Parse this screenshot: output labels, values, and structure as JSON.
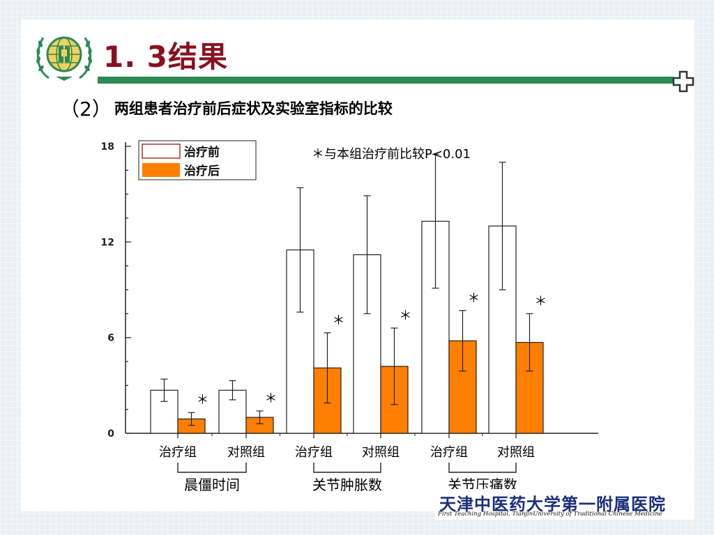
{
  "slide": {
    "title": "1. 3结果",
    "subtitle_num": "（2）",
    "subtitle_text": "两组患者治疗前后症状及实验室指标的比较",
    "footer": {
      "hospital_name": "天津中医药大学第一附属医院",
      "hospital_name_en": "First Teaching Hospital, TianjinUniversity of Traditional Chinese Medicine"
    },
    "colors": {
      "title": "#8a1020",
      "rule": "#2c8a52",
      "after_bar": "#ff7f00",
      "before_bar": "#ffffff"
    },
    "icons": [
      "hospital-logo-icon",
      "corner-cross-icon"
    ]
  },
  "chart_data": {
    "type": "bar",
    "note": "＊与本组治疗前比较P<0.01",
    "ylim": [
      0,
      18
    ],
    "yticks": [
      "0",
      "6",
      "12",
      "18"
    ],
    "categories": [
      "治疗组",
      "对照组",
      "治疗组",
      "对照组",
      "治疗组",
      "对照组"
    ],
    "groups": [
      {
        "label": "晨僵时间",
        "span": [
          0,
          1
        ]
      },
      {
        "label": "关节肿胀数",
        "span": [
          2,
          3
        ]
      },
      {
        "label": "关节压痛数",
        "span": [
          4,
          5
        ]
      }
    ],
    "legend_position": "top-left",
    "series": [
      {
        "name": "治疗前",
        "color": "#ffffff",
        "values": [
          2.7,
          2.7,
          11.5,
          11.2,
          13.3,
          13.0
        ],
        "errors": [
          0.7,
          0.6,
          3.9,
          3.7,
          4.2,
          4.0
        ],
        "marks": [
          "",
          "",
          "",
          "",
          "",
          ""
        ]
      },
      {
        "name": "治疗后",
        "color": "#ff7f00",
        "values": [
          0.9,
          1.0,
          4.1,
          4.2,
          5.8,
          5.7
        ],
        "errors": [
          0.4,
          0.4,
          2.2,
          2.4,
          1.9,
          1.8
        ],
        "marks": [
          "＊",
          "＊",
          "＊",
          "＊",
          "＊",
          "＊"
        ]
      }
    ]
  }
}
